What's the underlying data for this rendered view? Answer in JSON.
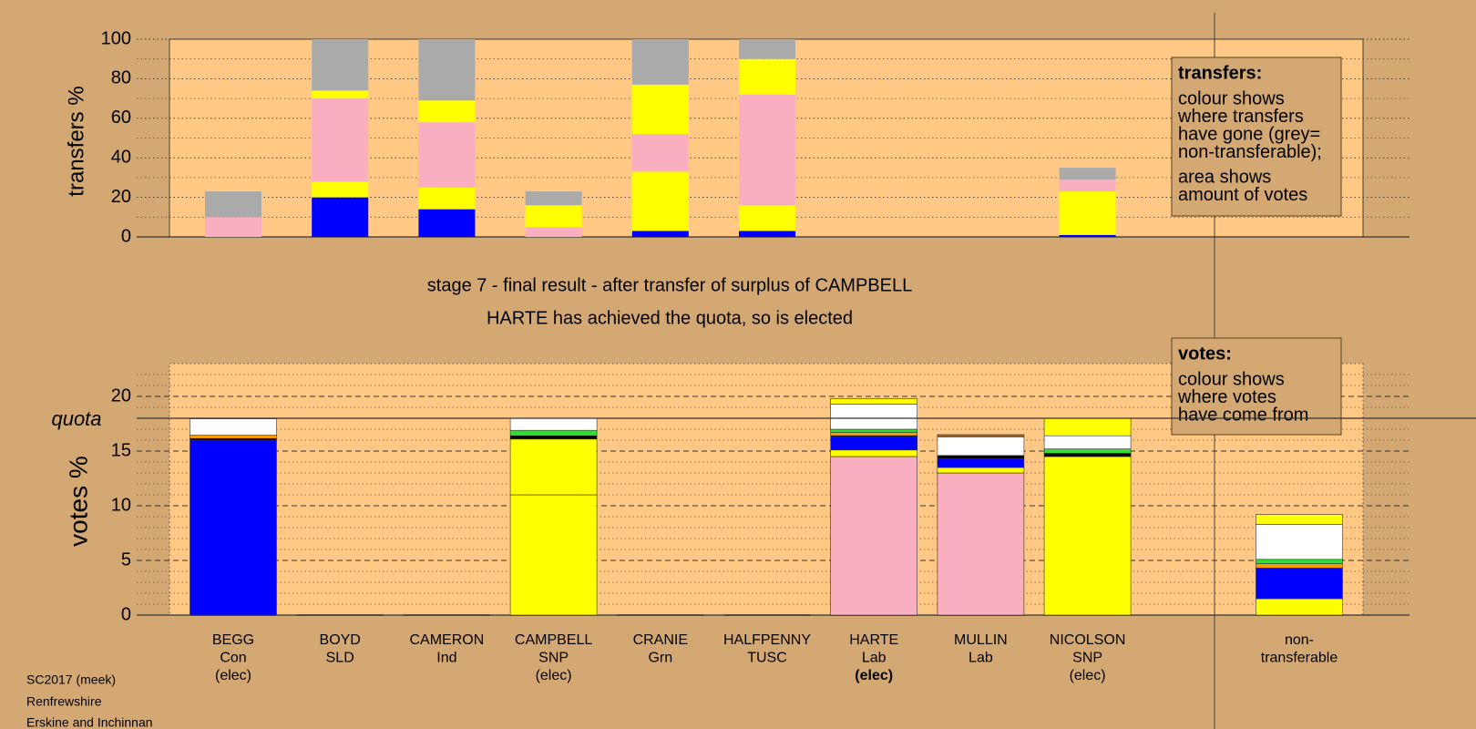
{
  "chart_data": [
    {
      "type": "bar",
      "stacked": true,
      "ylabel": "transfers %",
      "ylim": [
        0,
        100
      ],
      "yticks": [
        0,
        20,
        40,
        60,
        80,
        100
      ],
      "minor_gridlines": [
        10,
        30,
        50,
        70,
        90
      ],
      "series": [
        {
          "color": "#0000ff",
          "values": [
            0,
            20,
            14,
            0,
            3,
            3,
            0,
            0,
            1
          ]
        },
        {
          "color": "#ffff00",
          "values": [
            0,
            8,
            11,
            0,
            30,
            13,
            0,
            0,
            22
          ]
        },
        {
          "color": "#f9afc0",
          "values": [
            10,
            42,
            33,
            5,
            19,
            56,
            0,
            0,
            6
          ]
        },
        {
          "color": "#ffff00",
          "values": [
            0,
            4,
            11,
            11,
            25,
            18,
            0,
            0,
            0
          ]
        },
        {
          "color": "#aaaaaa",
          "values": [
            13,
            26,
            31,
            7,
            23,
            10,
            0,
            0,
            6
          ]
        }
      ],
      "legend_box": {
        "title": "transfers:",
        "lines": [
          "colour shows",
          "where transfers",
          "have gone (grey=",
          "non-transferable);",
          "area shows",
          "amount of votes"
        ]
      }
    },
    {
      "type": "bar",
      "stacked": true,
      "title": "stage 7 - final result - after transfer of surplus of CAMPBELL",
      "subtitle": "HARTE has achieved the quota, so is elected",
      "ylabel": "votes %",
      "categories": [
        [
          "BEGG",
          "Con",
          "(elec)"
        ],
        [
          "BOYD",
          "SLD"
        ],
        [
          "CAMERON",
          "Ind"
        ],
        [
          "CAMPBELL",
          "SNP",
          "(elec)"
        ],
        [
          "CRANIE",
          "Grn"
        ],
        [
          "HALFPENNY",
          "TUSC"
        ],
        [
          "HARTE",
          "Lab",
          "(elec)"
        ],
        [
          "MULLIN",
          "Lab"
        ],
        [
          "NICOLSON",
          "SNP",
          "(elec)"
        ],
        [
          "non-",
          "transferable"
        ]
      ],
      "ylim": [
        0,
        23
      ],
      "yticks": [
        0,
        5,
        10,
        15,
        20
      ],
      "minor_gridlines": [
        1,
        2,
        3,
        4,
        6,
        7,
        8,
        9,
        11,
        12,
        13,
        14,
        16,
        17,
        19,
        21,
        22
      ],
      "quota": {
        "label": "quota",
        "value": 18
      },
      "series": [
        {
          "color": "#f9afc0",
          "values": [
            0,
            0,
            0,
            0,
            0,
            0,
            14.5,
            13,
            0,
            0
          ]
        },
        {
          "color": "#ffff00",
          "values": [
            0,
            0,
            0,
            11,
            0,
            0,
            0.6,
            0.5,
            14.5,
            1.5
          ]
        },
        {
          "color": "#ffff00",
          "values": [
            0,
            0,
            0,
            5.1,
            0,
            0,
            0,
            0,
            0,
            0
          ]
        },
        {
          "color": "#0000ff",
          "values": [
            16,
            0,
            0,
            0,
            0,
            0,
            1.2,
            0.8,
            0,
            2.8
          ]
        },
        {
          "color": "#000000",
          "values": [
            0.15,
            0,
            0,
            0.3,
            0,
            0,
            0.1,
            0.3,
            0.3,
            0
          ]
        },
        {
          "color": "#ff9900",
          "values": [
            0.3,
            0,
            0,
            0,
            0,
            0,
            0.3,
            0,
            0,
            0.4
          ]
        },
        {
          "color": "#33dd33",
          "values": [
            0,
            0,
            0,
            0.5,
            0,
            0,
            0.3,
            0,
            0.4,
            0.4
          ]
        },
        {
          "color": "#ffffff",
          "values": [
            1.5,
            0,
            0,
            1.1,
            0,
            0,
            2.3,
            1.7,
            1.2,
            3.2
          ]
        },
        {
          "color": "#ffff00",
          "values": [
            0,
            0,
            0,
            0,
            0,
            0,
            0.5,
            0,
            1.6,
            0.9
          ]
        },
        {
          "color": "#996633",
          "values": [
            0,
            0,
            0,
            0,
            0,
            0,
            0,
            0.2,
            0,
            0
          ]
        }
      ],
      "legend_box": {
        "title": "votes:",
        "lines": [
          "colour shows",
          "where votes",
          "have come from"
        ]
      }
    }
  ],
  "footer": [
    "SC2017 (meek)",
    "Renfrewshire",
    "Erskine and Inchinnan"
  ]
}
